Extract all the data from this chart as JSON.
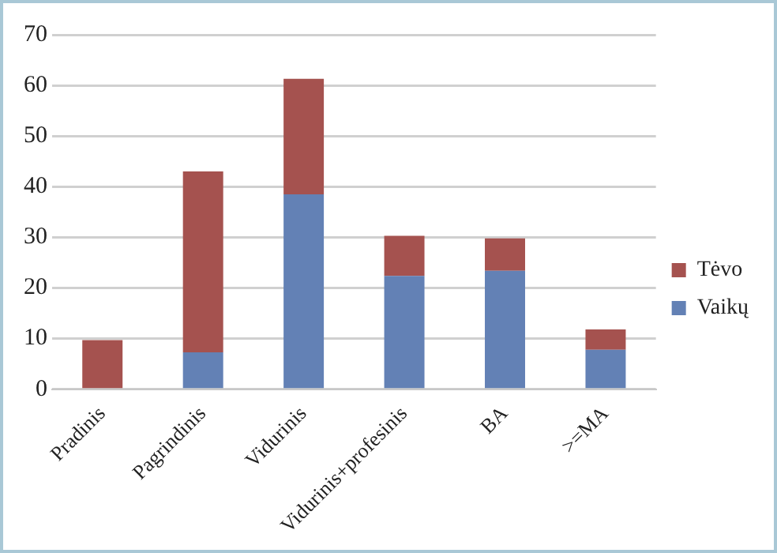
{
  "chart_data": {
    "type": "bar",
    "stacked": true,
    "categories": [
      "Pradinis",
      "Pagrindinis",
      "Vidurinis",
      "Vidurinis+profesinis",
      "BA",
      ">=MA"
    ],
    "series": [
      {
        "name": "Vaikų",
        "color": "#6381b5",
        "values": [
          0,
          7.3,
          38.5,
          22.4,
          23.4,
          7.8
        ]
      },
      {
        "name": "Tėvo",
        "color": "#a5524f",
        "values": [
          9.7,
          35.7,
          22.8,
          7.9,
          6.4,
          4.0
        ]
      }
    ],
    "ylim": [
      0,
      70
    ],
    "yticks": [
      0,
      10,
      20,
      30,
      40,
      50,
      60,
      70
    ],
    "grid": "y",
    "legend": "right"
  }
}
